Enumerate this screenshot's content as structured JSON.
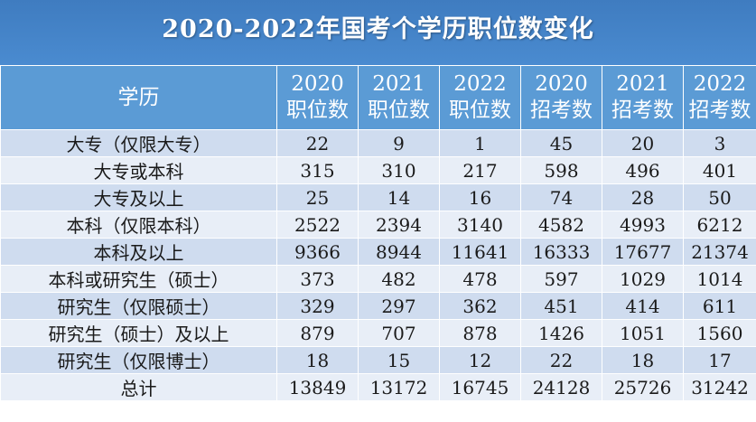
{
  "title": "2020-2022年国考个学历职位数变化",
  "table": {
    "header_first": "学历",
    "header_cols": [
      {
        "year": "2020",
        "label": "职位数"
      },
      {
        "year": "2021",
        "label": "职位数"
      },
      {
        "year": "2022",
        "label": "职位数"
      },
      {
        "year": "2020",
        "label": "招考数"
      },
      {
        "year": "2021",
        "label": "招考数"
      },
      {
        "year": "2022",
        "label": "招考数"
      }
    ],
    "rows": [
      {
        "label": "大专（仅限大专）",
        "values": [
          "22",
          "9",
          "1",
          "45",
          "20",
          "3"
        ]
      },
      {
        "label": "大专或本科",
        "values": [
          "315",
          "310",
          "217",
          "598",
          "496",
          "401"
        ]
      },
      {
        "label": "大专及以上",
        "values": [
          "25",
          "14",
          "16",
          "74",
          "28",
          "50"
        ]
      },
      {
        "label": "本科（仅限本科）",
        "values": [
          "2522",
          "2394",
          "3140",
          "4582",
          "4993",
          "6212"
        ]
      },
      {
        "label": "本科及以上",
        "values": [
          "9366",
          "8944",
          "11641",
          "16333",
          "17677",
          "21374"
        ]
      },
      {
        "label": "本科或研究生（硕士）",
        "values": [
          "373",
          "482",
          "478",
          "597",
          "1029",
          "1014"
        ]
      },
      {
        "label": "研究生（仅限硕士）",
        "values": [
          "329",
          "297",
          "362",
          "451",
          "414",
          "611"
        ]
      },
      {
        "label": "研究生（硕士）及以上",
        "values": [
          "879",
          "707",
          "878",
          "1426",
          "1051",
          "1560"
        ]
      },
      {
        "label": "研究生（仅限博士）",
        "values": [
          "18",
          "15",
          "12",
          "22",
          "18",
          "17"
        ]
      },
      {
        "label": "总计",
        "values": [
          "13849",
          "13172",
          "16745",
          "24128",
          "25726",
          "31242"
        ]
      }
    ]
  }
}
